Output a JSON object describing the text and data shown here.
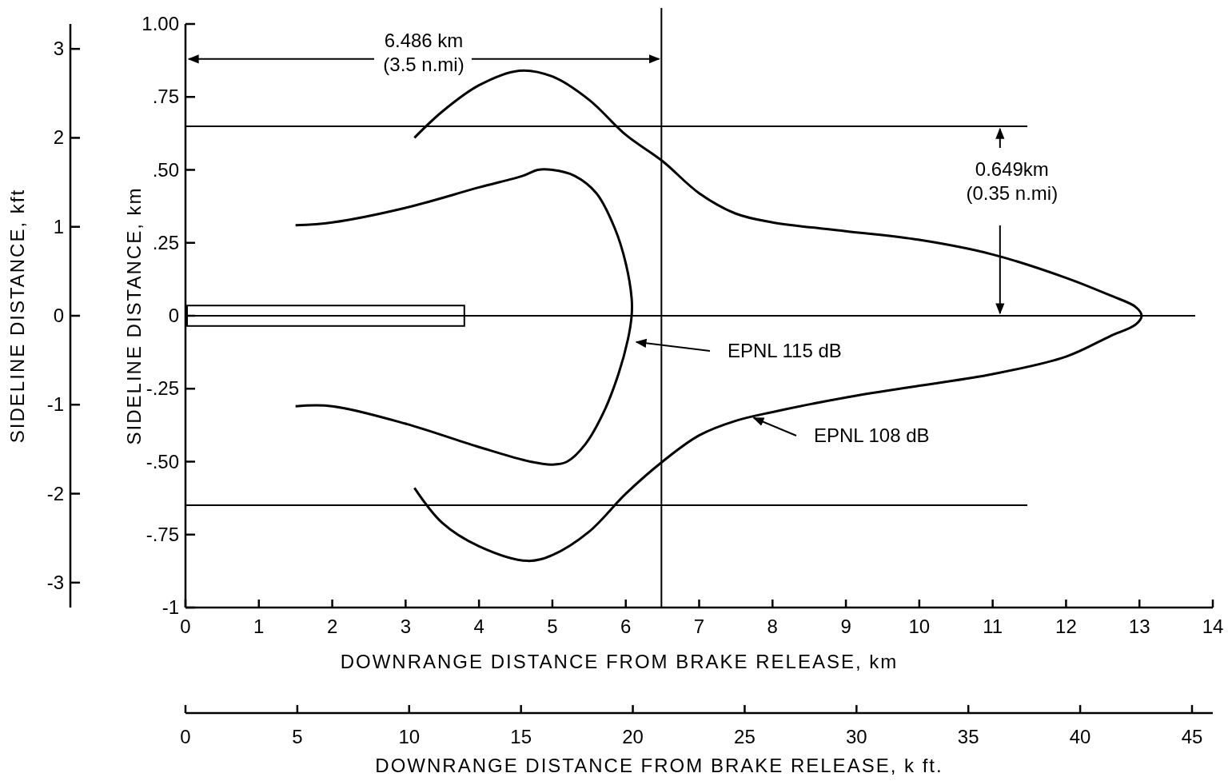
{
  "chart_data": {
    "type": "line",
    "xlabel": "DOWNRANGE DISTANCE FROM BRAKE RELEASE, km",
    "ylabel": "SIDELINE DISTANCE, km",
    "x2label": "DOWNRANGE DISTANCE FROM BRAKE RELEASE, k ft.",
    "y2label": "SIDELINE DISTANCE, kft",
    "xlim": [
      0,
      14
    ],
    "xticks": [
      0,
      1,
      2,
      3,
      4,
      5,
      6,
      7,
      8,
      9,
      10,
      11,
      12,
      13,
      14
    ],
    "ylim": [
      -1,
      1
    ],
    "yticks": [
      {
        "value": -1,
        "label": "-1"
      },
      {
        "value": -0.75,
        "label": "-.75"
      },
      {
        "value": -0.5,
        "label": "-.50"
      },
      {
        "value": -0.25,
        "label": "-.25"
      },
      0,
      {
        "value": 0.25,
        "label": ".25"
      },
      {
        "value": 0.5,
        "label": ".50"
      },
      {
        "value": 0.75,
        "label": ".75"
      },
      {
        "value": 1,
        "label": "1.00"
      }
    ],
    "x2lim": [
      0,
      45.93
    ],
    "x2ticks": [
      0,
      5,
      10,
      15,
      20,
      25,
      30,
      35,
      40,
      45
    ],
    "y2lim": [
      -3.28,
      3.28
    ],
    "y2ticks": [
      -3,
      -2,
      -1,
      0,
      1,
      2,
      3
    ],
    "grid": false,
    "legend": "right",
    "marker": "none",
    "line_style": "solid",
    "series": [
      {
        "name": "EPNL 115 dB",
        "color": "#000000",
        "x": [
          1.5,
          2,
          3,
          4,
          4.6,
          4.8,
          5,
          5.3,
          5.6,
          5.85,
          6,
          6.08,
          6.08,
          6.03,
          5.9,
          5.7,
          5.45,
          5.2,
          5,
          4.7,
          4,
          3,
          2,
          1.5
        ],
        "values": [
          0.31,
          0.32,
          0.37,
          0.44,
          0.48,
          0.5,
          0.5,
          0.48,
          0.42,
          0.3,
          0.18,
          0.06,
          0,
          -0.08,
          -0.2,
          -0.33,
          -0.44,
          -0.5,
          -0.51,
          -0.5,
          -0.45,
          -0.37,
          -0.31,
          -0.31
        ]
      },
      {
        "name": "EPNL 108 dB",
        "color": "#000000",
        "x": [
          3.12,
          3.5,
          4,
          4.55,
          5,
          5.5,
          6,
          6.5,
          7,
          7.5,
          8,
          9,
          10,
          11,
          12,
          12.6,
          12.95,
          13.03,
          12.95,
          12.6,
          12,
          11,
          10,
          9,
          8,
          7.5,
          7,
          6.5,
          6,
          5.5,
          5,
          4.66,
          4,
          3.5,
          3.12
        ],
        "values": [
          0.61,
          0.7,
          0.79,
          0.84,
          0.82,
          0.74,
          0.62,
          0.53,
          0.42,
          0.35,
          0.32,
          0.29,
          0.26,
          0.21,
          0.13,
          0.07,
          0.03,
          0,
          -0.03,
          -0.07,
          -0.14,
          -0.2,
          -0.24,
          -0.28,
          -0.33,
          -0.36,
          -0.41,
          -0.5,
          -0.61,
          -0.74,
          -0.82,
          -0.84,
          -0.79,
          -0.71,
          -0.59
        ]
      }
    ],
    "ref_lines": [
      {
        "axis": "x",
        "value": 6.486
      },
      {
        "axis": "y",
        "value": 0.649
      },
      {
        "axis": "y",
        "value": -0.649
      },
      {
        "axis": "y",
        "value": 0
      }
    ],
    "annotations": [
      {
        "text": "6.486 km\n(3.5 n.mi)",
        "x": 6.486,
        "y": 0.88
      },
      {
        "text": "0.649km\n(0.35 n.mi)",
        "x": 11.1,
        "y": 0.649
      }
    ]
  }
}
